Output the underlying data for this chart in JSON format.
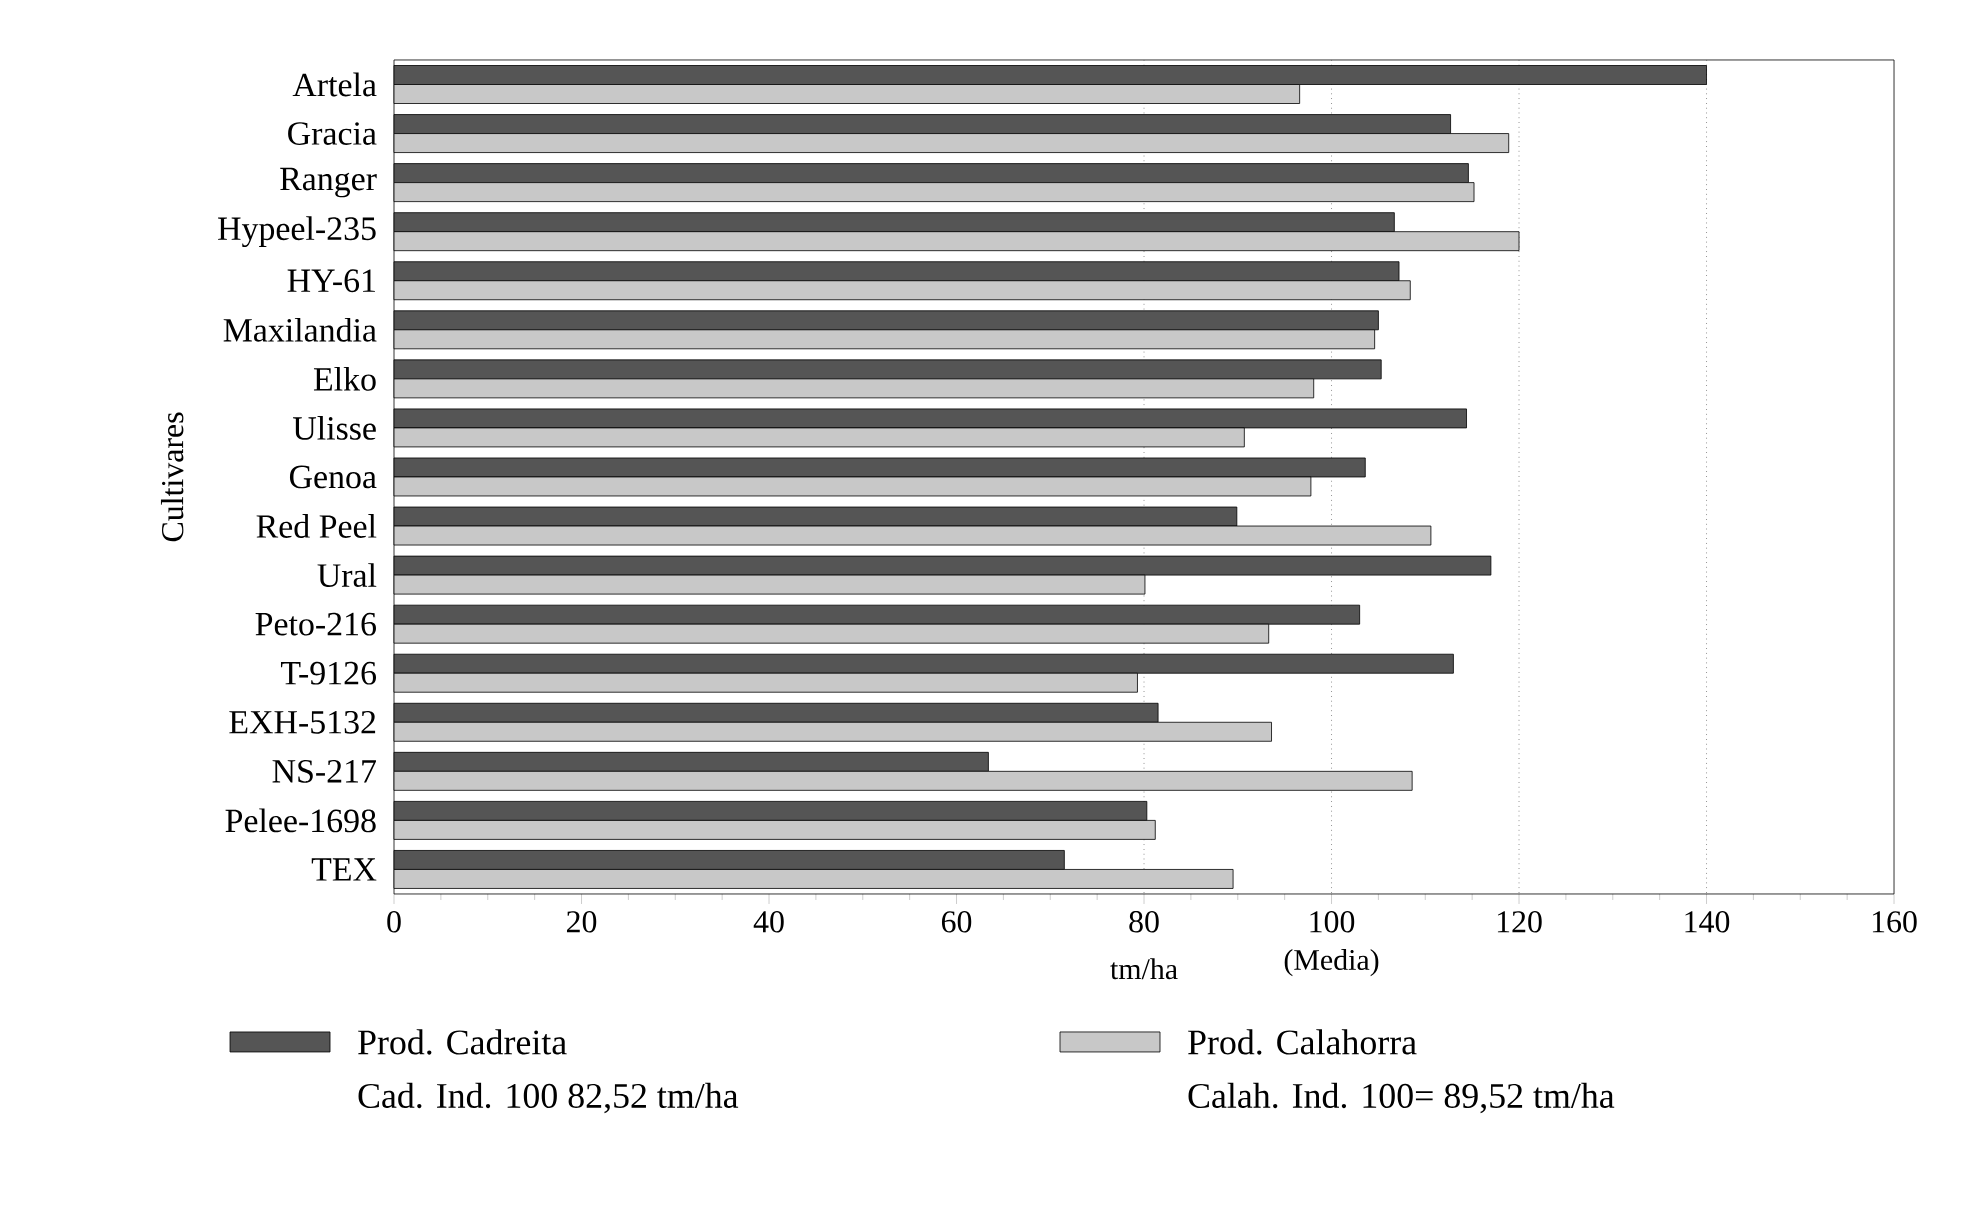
{
  "chart_data": {
    "type": "bar",
    "orientation": "horizontal",
    "xlabel": "tm/ha",
    "ylabel": "Cultivares",
    "categories": [
      "Artela",
      "Gracia",
      "Ranger",
      "Hypeel-235",
      "HY-61",
      "Maxilandia",
      "Elko",
      "Ulisse",
      "Genoa",
      "Red Peel",
      "Ural",
      "Peto-216",
      "T-9126",
      "EXH-5132",
      "NS-217",
      "Pelee-1698",
      "TEX"
    ],
    "series": [
      {
        "name": "Prod. Cadreita",
        "color": "#555555",
        "values": [
          140.0,
          112.7,
          114.6,
          106.7,
          107.2,
          105.0,
          105.3,
          114.4,
          103.6,
          89.9,
          117.0,
          103.0,
          113.0,
          81.5,
          63.4,
          80.3,
          71.5
        ]
      },
      {
        "name": "Prod. Calahorra",
        "color": "#c8c8c8",
        "values": [
          96.6,
          118.9,
          115.2,
          120.0,
          108.4,
          104.6,
          98.1,
          90.7,
          97.8,
          110.6,
          80.1,
          93.3,
          79.3,
          93.6,
          108.6,
          81.2,
          89.5
        ]
      }
    ],
    "xlim": [
      0,
      160
    ],
    "xticks": [
      0,
      20,
      40,
      60,
      80,
      100,
      120,
      140,
      160
    ],
    "ref_lines": [
      {
        "axis": "x",
        "value": 80,
        "line_style": "dotted"
      },
      {
        "axis": "x",
        "value": 100,
        "label": "(Media)",
        "line_style": "dotted"
      },
      {
        "axis": "x",
        "value": 120,
        "line_style": "dotted"
      },
      {
        "axis": "x",
        "value": 140,
        "line_style": "dotted"
      }
    ],
    "legend": "bottom",
    "annotations": [
      "Cad. Ind. 100 82,52 tm/ha",
      "Calah. Ind. 100= 89,52 tm/ha"
    ]
  }
}
